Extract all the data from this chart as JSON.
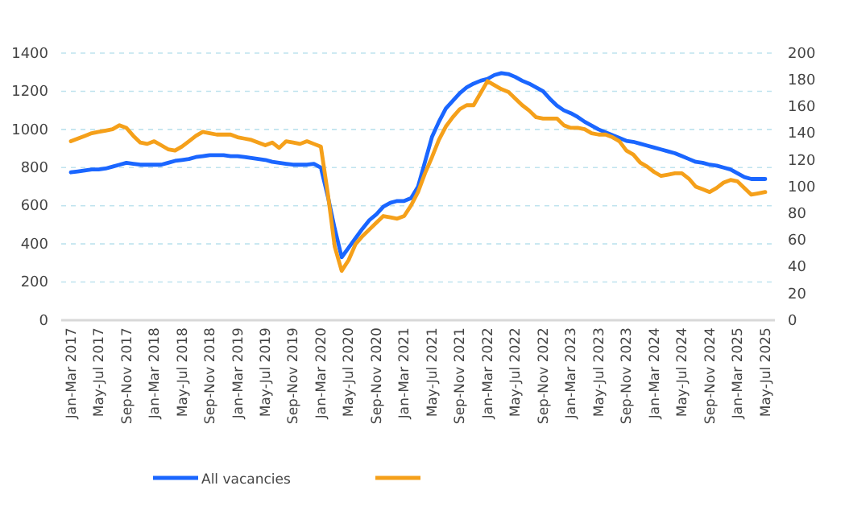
{
  "chart_data": {
    "type": "line",
    "categories": [
      "Jan-Mar 2017",
      null,
      null,
      null,
      "May-Jul 2017",
      null,
      null,
      null,
      "Sep-Nov 2017",
      null,
      null,
      null,
      "Jan-Mar 2018",
      null,
      null,
      null,
      "May-Jul 2018",
      null,
      null,
      null,
      "Sep-Nov 2018",
      null,
      null,
      null,
      "Jan-Mar 2019",
      null,
      null,
      null,
      "May-Jul 2019",
      null,
      null,
      null,
      "Sep-Nov 2019",
      null,
      null,
      null,
      "Jan-Mar 2020",
      null,
      null,
      null,
      "May-Jul 2020",
      null,
      null,
      null,
      "Sep-Nov 2020",
      null,
      null,
      null,
      "Jan-Mar 2021",
      null,
      null,
      null,
      "May-Jul 2021",
      null,
      null,
      null,
      "Sep-Nov 2021",
      null,
      null,
      null,
      "Jan-Mar 2022",
      null,
      null,
      null,
      "May-Jul 2022",
      null,
      null,
      null,
      "Sep-Nov 2022",
      null,
      null,
      null,
      "Jan-Mar 2023",
      null,
      null,
      null,
      "May-Jul 2023",
      null,
      null,
      null,
      "Sep-Nov 2023",
      null,
      null,
      null,
      "Jan-Mar 2024",
      null,
      null,
      null,
      "May-Jul 2024",
      null,
      null,
      null,
      "Sep-Nov 2024",
      null,
      null,
      null,
      "Jan-Mar 2025",
      null,
      null,
      null,
      "May-Jul 2025"
    ],
    "series": [
      {
        "name": "All vacancies",
        "color": "#1a66ff",
        "values": [
          775,
          780,
          785,
          790,
          790,
          795,
          805,
          815,
          825,
          820,
          815,
          815,
          815,
          815,
          825,
          835,
          840,
          845,
          855,
          860,
          865,
          865,
          865,
          860,
          860,
          855,
          850,
          845,
          840,
          830,
          825,
          820,
          815,
          815,
          815,
          820,
          800,
          650,
          480,
          330,
          380,
          430,
          480,
          525,
          555,
          595,
          615,
          625,
          625,
          640,
          700,
          830,
          960,
          1040,
          1110,
          1150,
          1190,
          1220,
          1240,
          1255,
          1265,
          1285,
          1295,
          1290,
          1275,
          1255,
          1240,
          1220,
          1200,
          1160,
          1125,
          1100,
          1085,
          1065,
          1040,
          1020,
          1000,
          985,
          970,
          955,
          940,
          935,
          925,
          915,
          905,
          895,
          885,
          875,
          860,
          845,
          830,
          825,
          815,
          810,
          800,
          790,
          770,
          750,
          740,
          740,
          740
        ]
      },
      {
        "color": "#f5a01a",
        "axis": "y2",
        "values": [
          134,
          136,
          138,
          140,
          141,
          142,
          143,
          146,
          144,
          138,
          133,
          132,
          134,
          131,
          128,
          127,
          130,
          134,
          138,
          141,
          140,
          139,
          139,
          139,
          137,
          136,
          135,
          133,
          131,
          133,
          129,
          134,
          133,
          132,
          134,
          132,
          130,
          95,
          55,
          37,
          45,
          57,
          63,
          68,
          73,
          78,
          77,
          76,
          78,
          86,
          96,
          110,
          122,
          135,
          145,
          152,
          158,
          161,
          161,
          170,
          179,
          176,
          173,
          171,
          166,
          161,
          157,
          152,
          151,
          151,
          151,
          146,
          144,
          144,
          143,
          140,
          139,
          139,
          137,
          134,
          127,
          124,
          118,
          115,
          111,
          108,
          109,
          110,
          110,
          106,
          100,
          98,
          96,
          99,
          103,
          105,
          104,
          99,
          94,
          95,
          96
        ]
      }
    ],
    "ylim": [
      0,
      1400
    ],
    "yticks": [
      0,
      200,
      400,
      600,
      800,
      1000,
      1200,
      1400
    ],
    "y2lim": [
      0,
      200
    ],
    "y2ticks": [
      0,
      20,
      40,
      60,
      80,
      100,
      120,
      140,
      160,
      180,
      200
    ],
    "grid": "y",
    "legend": "bottom",
    "marker": "none",
    "line_style": "solid"
  }
}
